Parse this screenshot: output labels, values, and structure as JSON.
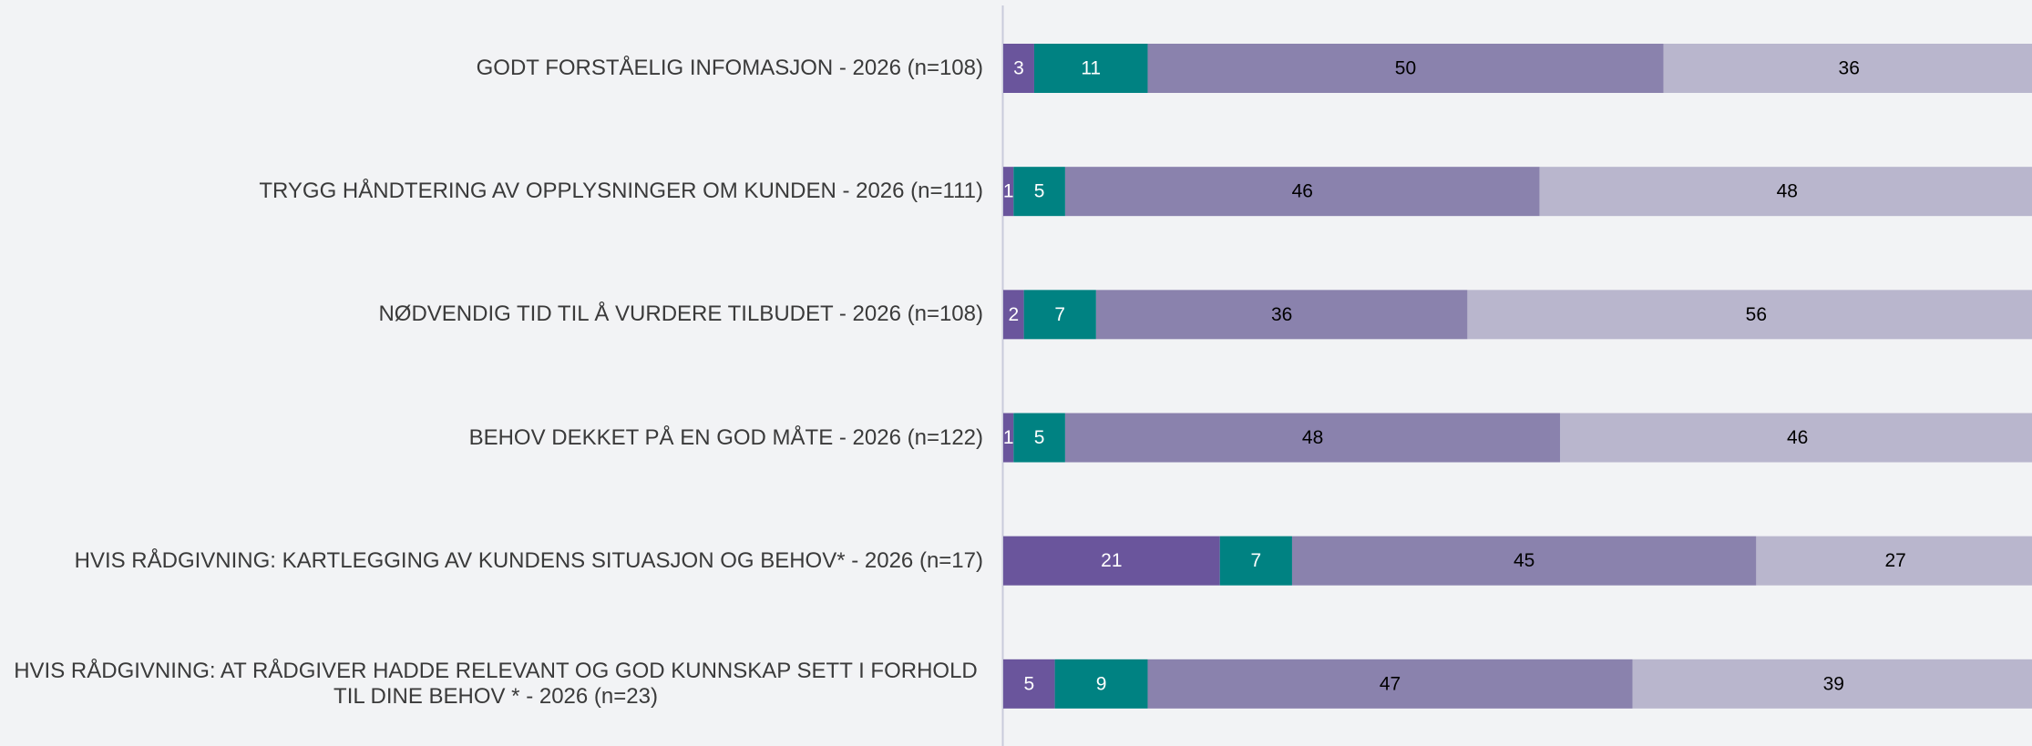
{
  "chart_data": {
    "type": "bar",
    "orientation": "horizontal",
    "stacked": true,
    "categories": [
      "GODT FORSTÅELIG INFOMASJON - 2026 (n=108)",
      "TRYGG HÅNDTERING AV OPPLYSNINGER OM KUNDEN - 2026 (n=111)",
      "NØDVENDIG TID TIL Å VURDERE TILBUDET - 2026 (n=108)",
      "BEHOV DEKKET PÅ EN GOD MÅTE - 2026 (n=122)",
      "HVIS RÅDGIVNING: KARTLEGGING AV KUNDENS SITUASJON OG BEHOV* - 2026 (n=17)",
      "HVIS RÅDGIVNING: AT RÅDGIVER HADDE RELEVANT OG GOD KUNNSKAP SETT I FORHOLD TIL DINE BEHOV * - 2026 (n=23)"
    ],
    "series": [
      {
        "color": "#6a559c",
        "label_color": "#ffffff",
        "values": [
          3,
          1,
          2,
          1,
          21,
          5
        ]
      },
      {
        "color": "#008282",
        "label_color": "#ffffff",
        "values": [
          11,
          5,
          7,
          5,
          7,
          9
        ]
      },
      {
        "color": "#8a82ad",
        "label_color": "#000000",
        "values": [
          50,
          46,
          36,
          48,
          45,
          47
        ]
      },
      {
        "color": "#b9b6cd",
        "label_color": "#000000",
        "values": [
          36,
          48,
          56,
          46,
          27,
          39
        ]
      }
    ],
    "xlim": [
      0,
      100
    ]
  }
}
